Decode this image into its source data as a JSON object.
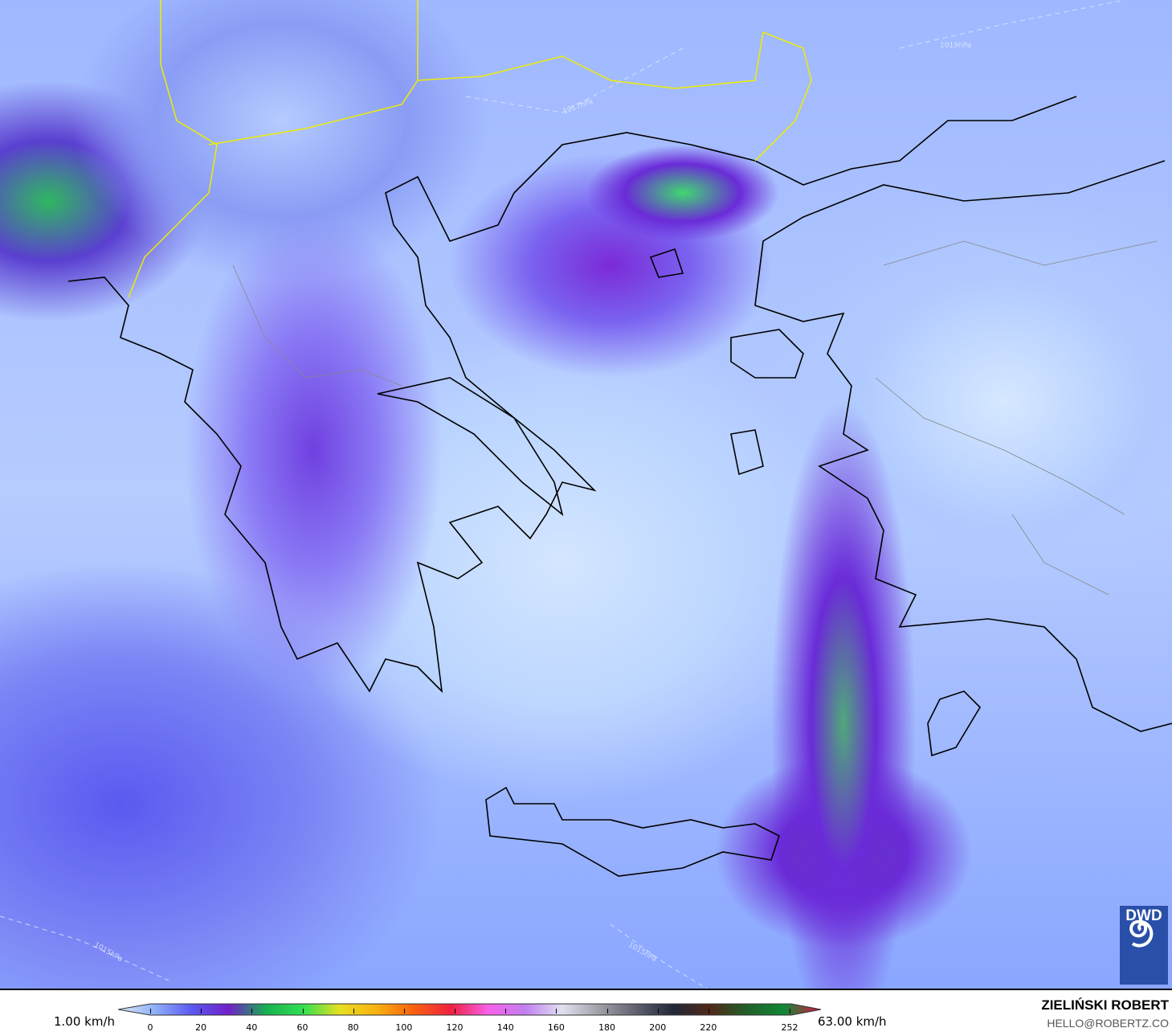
{
  "map": {
    "isobar_labels": [
      "1015hPa",
      "1019hPa",
      "1015hPa",
      "1017hPa"
    ],
    "logo": "DWD"
  },
  "legend": {
    "min_label": "1.00 km/h",
    "max_label": "63.00 km/h",
    "ticks": [
      "0",
      "20",
      "40",
      "60",
      "80",
      "100",
      "120",
      "140",
      "160",
      "180",
      "200",
      "220",
      "252"
    ],
    "colors": [
      "#dce8fc",
      "#8fb0f8",
      "#5a58f0",
      "#7020c8",
      "#18b050",
      "#30e050",
      "#e8e020",
      "#f8b010",
      "#f86010",
      "#f02040",
      "#f860e8",
      "#c080f0",
      "#e0e0f0",
      "#a0a0a8",
      "#606070",
      "#202838",
      "#502818",
      "#206028",
      "#108838",
      "#e01040"
    ]
  },
  "credits": {
    "author": "ZIELIŃSKI ROBERT",
    "email": "HELLO@ROBERTZ.CO"
  }
}
